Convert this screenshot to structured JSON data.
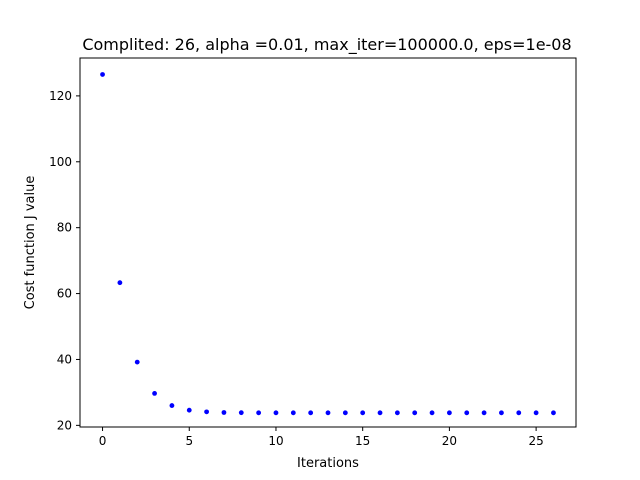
{
  "chart_data": {
    "type": "scatter",
    "title": "Complited: 26, alpha =0.01, max_iter=100000.0, eps=1e-08",
    "xlabel": "Iterations",
    "ylabel": "Cost function J value",
    "xlim": [
      -1.3,
      27.3
    ],
    "ylim": [
      19.5,
      131.5
    ],
    "xticks": [
      0,
      5,
      10,
      15,
      20,
      25
    ],
    "yticks": [
      20,
      40,
      60,
      80,
      100,
      120
    ],
    "grid": false,
    "marker_color": "#0000ff",
    "series": [
      {
        "x": [
          0,
          1,
          2,
          3,
          4,
          5,
          6,
          7,
          8,
          9,
          10,
          11,
          12,
          13,
          14,
          15,
          16,
          17,
          18,
          19,
          20,
          21,
          22,
          23,
          24,
          25,
          26
        ],
        "values": [
          126.5,
          63.3,
          39.2,
          29.7,
          26.0,
          24.6,
          24.1,
          23.9,
          23.85,
          23.8,
          23.8,
          23.8,
          23.8,
          23.8,
          23.8,
          23.8,
          23.8,
          23.8,
          23.8,
          23.8,
          23.8,
          23.8,
          23.8,
          23.8,
          23.8,
          23.8,
          23.8
        ]
      }
    ]
  }
}
